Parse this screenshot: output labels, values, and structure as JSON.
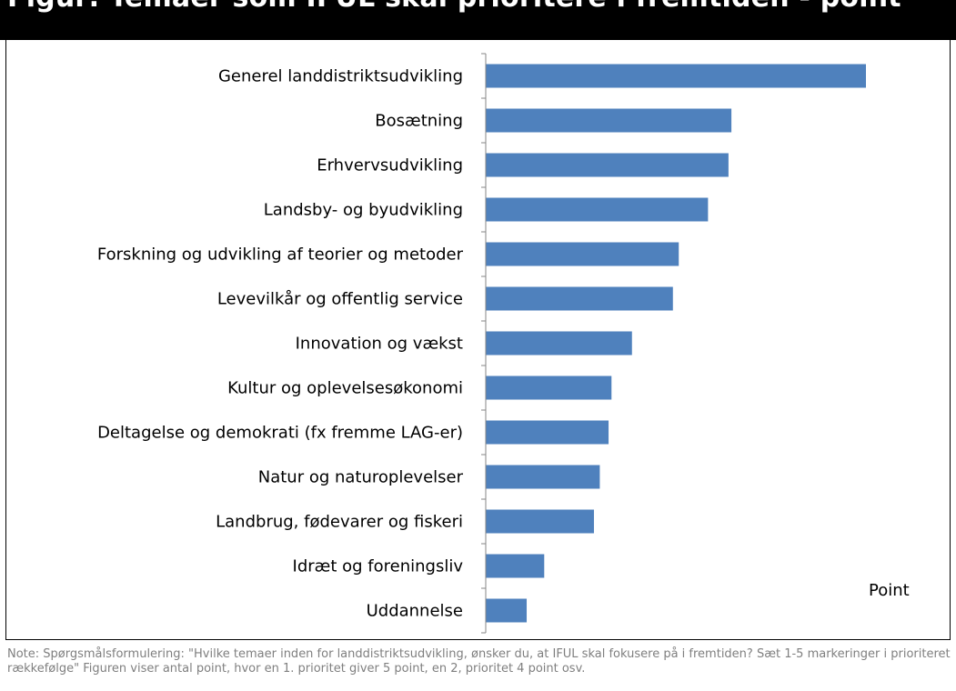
{
  "header": {
    "title": "Figur: Temaer som IFUL skal prioritere i fremtiden - point"
  },
  "chart_data": {
    "type": "bar",
    "orientation": "horizontal",
    "categories": [
      "Generel landdistriktsudvikling",
      "Bosætning",
      "Erhvervsudvikling",
      "Landsby- og byudvikling",
      "Forskning og udvikling af teorier og metoder",
      "Levevilkår og offentlig service",
      "Innovation og vækst",
      "Kultur og oplevelsesøkonomi",
      "Deltagelse og demokrati (fx fremme LAG-er)",
      "Natur og naturoplevelser",
      "Landbrug, fødevarer og fiskeri",
      "Idræt og foreningsliv",
      "Uddannelse"
    ],
    "values": [
      130,
      84,
      83,
      76,
      66,
      64,
      50,
      43,
      42,
      39,
      37,
      20,
      14
    ],
    "unit_label": "Point",
    "xlim": [
      0,
      140
    ],
    "bar_color": "#4f81bd",
    "grid": false
  },
  "note": "Note: Spørgsmålsformulering: \"Hvilke temaer inden for landdistriktsudvikling, ønsker du, at IFUL skal fokusere på i fremtiden?  Sæt 1-5 markeringer i prioriteret rækkefølge\" Figuren viser antal point, hvor en 1. prioritet giver 5 point, en 2, prioritet 4 point osv."
}
